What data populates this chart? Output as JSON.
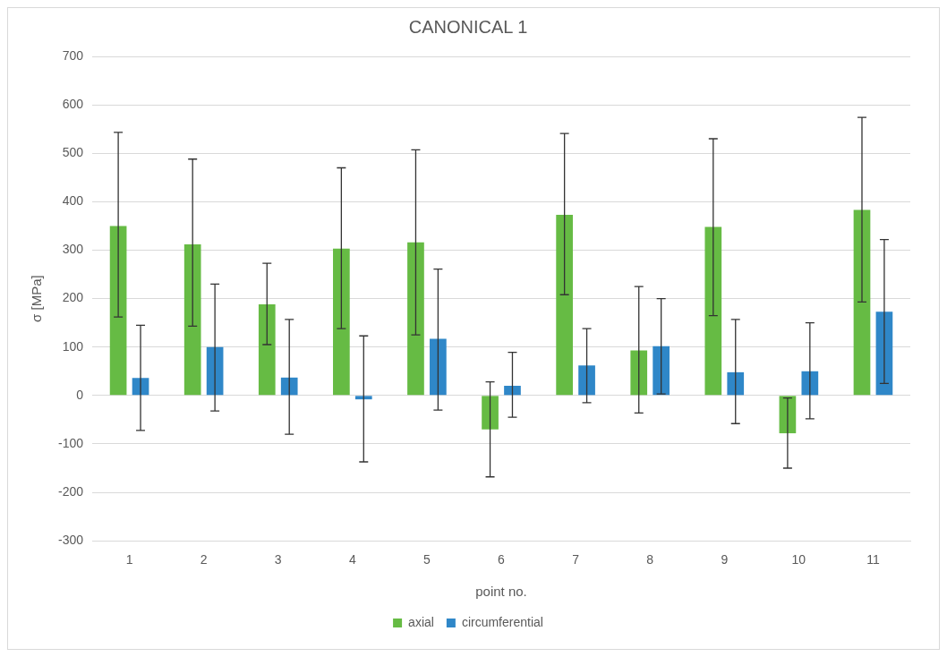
{
  "chart_data": {
    "type": "bar",
    "title": "CANONICAL 1",
    "xlabel": "point no.",
    "ylabel": "σ [MPa]",
    "categories": [
      "1",
      "2",
      "3",
      "4",
      "5",
      "6",
      "7",
      "8",
      "9",
      "10",
      "11"
    ],
    "series": [
      {
        "name": "axial",
        "color": "#66bb44",
        "values": [
          350,
          312,
          188,
          303,
          316,
          -70,
          373,
          93,
          348,
          -78,
          383
        ],
        "errors": [
          [
            162,
            543
          ],
          [
            143,
            488
          ],
          [
            105,
            273
          ],
          [
            138,
            470
          ],
          [
            125,
            507
          ],
          [
            -168,
            28
          ],
          [
            208,
            541
          ],
          [
            -36,
            225
          ],
          [
            165,
            530
          ],
          [
            -150,
            -5
          ],
          [
            193,
            574
          ]
        ]
      },
      {
        "name": "circumferential",
        "color": "#2f87c8",
        "values": [
          36,
          100,
          37,
          -8,
          117,
          20,
          62,
          102,
          48,
          50,
          173
        ],
        "errors": [
          [
            -72,
            145
          ],
          [
            -32,
            230
          ],
          [
            -80,
            157
          ],
          [
            -137,
            123
          ],
          [
            -30,
            261
          ],
          [
            -45,
            89
          ],
          [
            -15,
            138
          ],
          [
            3,
            200
          ],
          [
            -58,
            157
          ],
          [
            -48,
            150
          ],
          [
            25,
            322
          ]
        ]
      }
    ],
    "ylim": [
      -300,
      700
    ],
    "yticks": [
      -300,
      -200,
      -100,
      0,
      100,
      200,
      300,
      400,
      500,
      600,
      700
    ],
    "grid": "y",
    "legend": "bottom"
  }
}
